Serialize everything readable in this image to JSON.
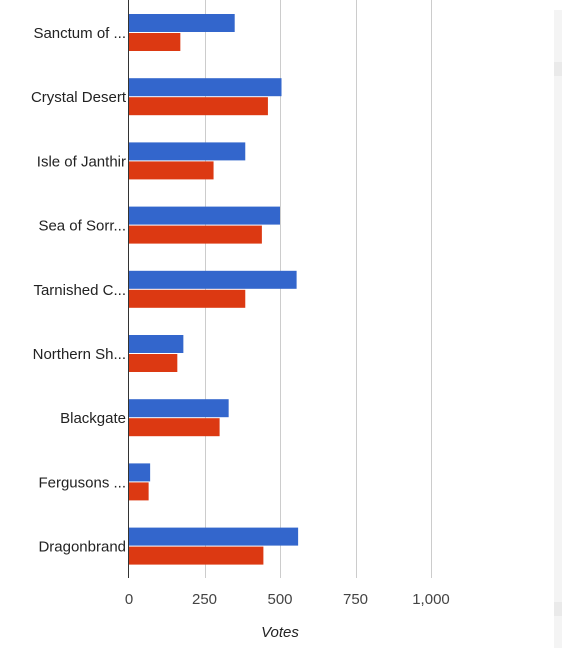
{
  "chart_data": {
    "type": "bar",
    "orientation": "horizontal",
    "categories": [
      "Sanctum of ...",
      "Crystal Desert",
      "Isle of Janthir",
      "Sea of Sorr...",
      "Tarnished C...",
      "Northern Sh...",
      "Blackgate",
      "Fergusons ...",
      "Dragonbrand"
    ],
    "series": [
      {
        "values": [
          350,
          505,
          385,
          500,
          555,
          180,
          330,
          70,
          560
        ]
      },
      {
        "values": [
          170,
          460,
          280,
          440,
          385,
          160,
          300,
          65,
          445
        ]
      }
    ],
    "xlabel": "Votes",
    "ylabel": "",
    "xlim": [
      0,
      1000
    ],
    "xticks": [
      0,
      250,
      500,
      750,
      1000
    ],
    "xtick_labels": [
      "0",
      "250",
      "500",
      "750",
      "1,000"
    ],
    "grid": true,
    "legend": "none"
  },
  "colors": {
    "series": [
      "#3366cc",
      "#dc3912"
    ],
    "grid": "#cccccc",
    "axis": "#333333",
    "text": "#222222",
    "tick_text": "#444444"
  }
}
